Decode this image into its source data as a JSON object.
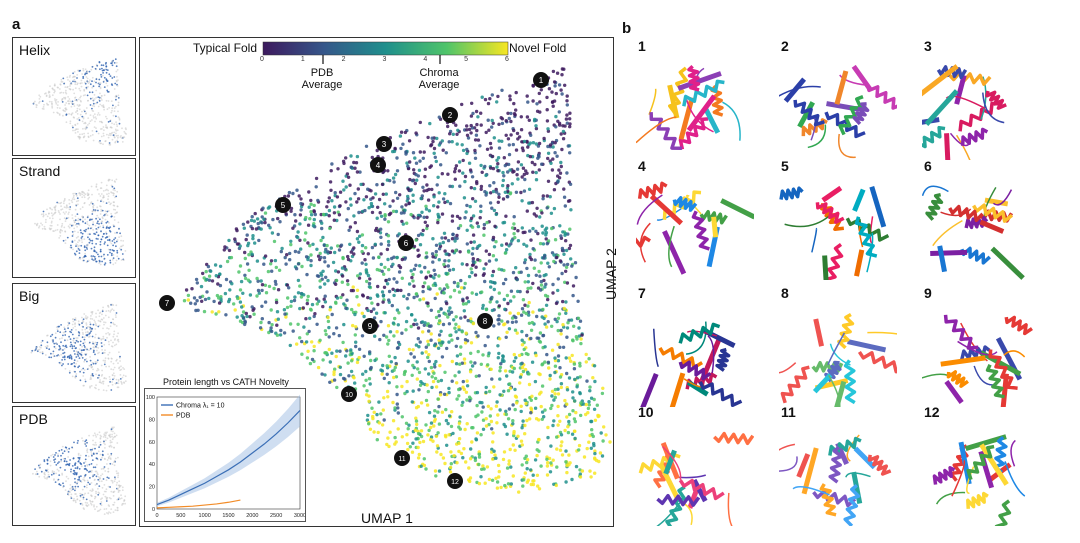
{
  "panel_a_label": "a",
  "panel_b_label": "b",
  "thumbnails": [
    {
      "label": "Helix"
    },
    {
      "label": "Strand"
    },
    {
      "label": "Big"
    },
    {
      "label": "PDB"
    }
  ],
  "umap": {
    "xlabel": "UMAP 1",
    "ylabel": "UMAP 2",
    "colorbar": {
      "left_label": "Typical Fold",
      "right_label": "Novel Fold",
      "ticks": [
        "0",
        "1",
        "2",
        "3",
        "4",
        "5",
        "6"
      ],
      "pdb_marker": "PDB\nAverage",
      "chroma_marker": "Chroma\nAverage",
      "colors": [
        "#3d1a5e",
        "#35578a",
        "#1f8f8c",
        "#4fc46a",
        "#f7e622"
      ]
    },
    "markers": [
      "1",
      "2",
      "3",
      "4",
      "5",
      "6",
      "7",
      "8",
      "9",
      "10",
      "11",
      "12"
    ]
  },
  "chart_data": {
    "type": "line",
    "title": "Protein length vs CATH Novelty",
    "xlabel": "",
    "ylabel": "",
    "xlim": [
      0,
      3000
    ],
    "ylim": [
      0,
      100
    ],
    "x_ticks": [
      "0",
      "500",
      "1000",
      "1500",
      "2000",
      "2500",
      "3000"
    ],
    "y_ticks": [
      "0",
      "20",
      "40",
      "60",
      "80",
      "100"
    ],
    "series": [
      {
        "name": "Chroma λ₁ = 10",
        "color": "#3b6fb6",
        "x": [
          0,
          250,
          500,
          750,
          1000,
          1250,
          1500,
          1750,
          2000,
          2250,
          2500,
          2750,
          3000
        ],
        "y": [
          4,
          8,
          13,
          18,
          23,
          29,
          35,
          42,
          50,
          58,
          67,
          77,
          88
        ]
      },
      {
        "name": "PDB",
        "color": "#f28c28",
        "x": [
          0,
          250,
          500,
          750,
          1000,
          1250,
          1500,
          1750
        ],
        "y": [
          1,
          1.5,
          2,
          2.5,
          3.5,
          4.5,
          6,
          8
        ]
      }
    ]
  },
  "structures": [
    {
      "num": "1"
    },
    {
      "num": "2"
    },
    {
      "num": "3"
    },
    {
      "num": "4"
    },
    {
      "num": "5"
    },
    {
      "num": "6"
    },
    {
      "num": "7"
    },
    {
      "num": "8"
    },
    {
      "num": "9"
    },
    {
      "num": "10"
    },
    {
      "num": "11"
    },
    {
      "num": "12"
    }
  ]
}
